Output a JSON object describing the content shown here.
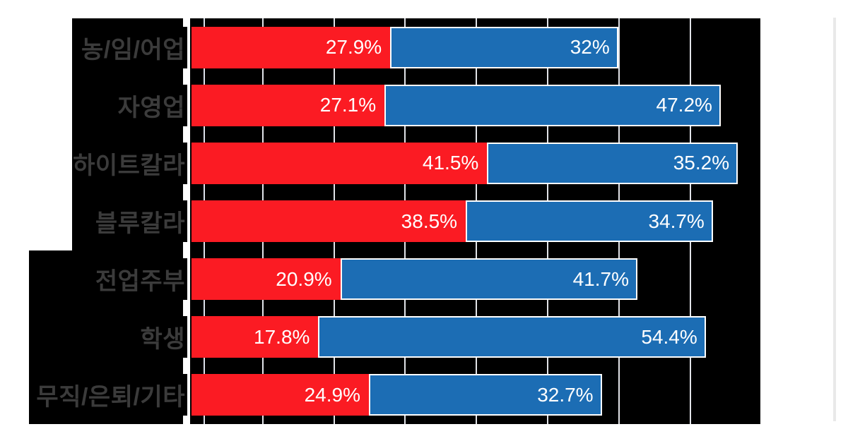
{
  "chart_data": {
    "type": "bar",
    "orientation": "horizontal",
    "stacked": true,
    "title": "",
    "xlabel": "",
    "ylabel": "",
    "categories": [
      "농/임/어업",
      "자영업",
      "하이트칼라",
      "블루칼라",
      "전업주부",
      "학생",
      "무직/은퇴/기타"
    ],
    "series": [
      {
        "name": "series-red",
        "color": "#fb1b23",
        "values": [
          27.9,
          27.1,
          41.5,
          38.5,
          20.9,
          17.8,
          24.9
        ],
        "labels": [
          "27.9%",
          "27.1%",
          "41.5%",
          "38.5%",
          "20.9%",
          "17.8%",
          "24.9%"
        ]
      },
      {
        "name": "series-blue",
        "color": "#1c6db4",
        "values": [
          32,
          47.2,
          35.2,
          34.7,
          41.7,
          54.4,
          32.7
        ],
        "labels": [
          "32%",
          "47.2%",
          "35.2%",
          "34.7%",
          "41.7%",
          "54.4%",
          "32.7%"
        ]
      }
    ],
    "xlim": [
      0,
      80
    ],
    "gridline_interval_pct": 10,
    "grid": true,
    "legend_position": "none"
  },
  "colors": {
    "plot_background": "#000000",
    "page_background": "#ffffff",
    "gridline": "#e1e3e8",
    "axis_line": "#ffffff",
    "category_text": "#3b3b3b",
    "value_text": "#ffffff",
    "blue_bar_border": "#ffffff",
    "right_edge_line": "#e9e9e9"
  }
}
